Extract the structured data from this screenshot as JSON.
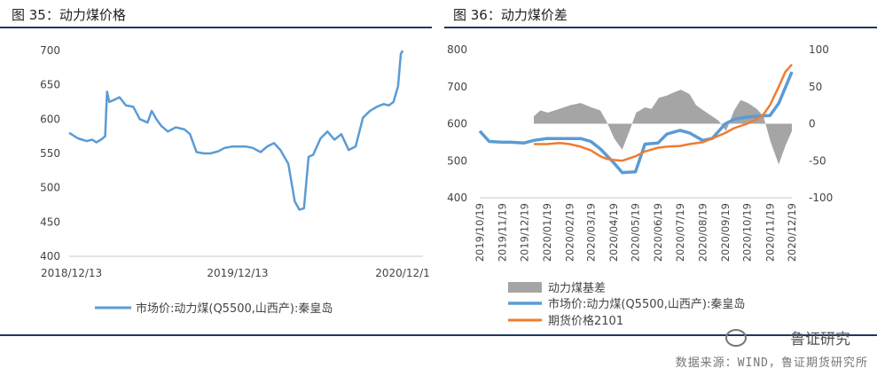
{
  "chart_data": [
    {
      "type": "line",
      "title": "图 35：动力煤价格",
      "x_ticks": [
        "2018/12/13",
        "2019/12/13",
        "2020/12/1"
      ],
      "ylim": [
        400,
        700
      ],
      "y_ticks": [
        400,
        450,
        500,
        550,
        600,
        650,
        700
      ],
      "legend": "bottom",
      "series": [
        {
          "name": "市场价:动力煤(Q5500,山西产):秦皇岛",
          "color": "#5b9bd5",
          "x": [
            "2018/12/13",
            "2019/01/01",
            "2019/01/10",
            "2019/01/20",
            "2019/02/01",
            "2019/02/10",
            "2019/02/20",
            "2019/03/01",
            "2019/03/05",
            "2019/03/10",
            "2019/03/20",
            "2019/04/01",
            "2019/04/15",
            "2019/05/01",
            "2019/05/15",
            "2019/06/01",
            "2019/06/10",
            "2019/06/20",
            "2019/07/01",
            "2019/07/15",
            "2019/08/01",
            "2019/08/20",
            "2019/09/01",
            "2019/09/15",
            "2019/10/01",
            "2019/10/15",
            "2019/11/01",
            "2019/11/15",
            "2019/12/01",
            "2019/12/15",
            "2020/01/01",
            "2020/01/15",
            "2020/02/01",
            "2020/02/15",
            "2020/03/01",
            "2020/03/15",
            "2020/04/01",
            "2020/04/15",
            "2020/04/25",
            "2020/05/05",
            "2020/05/15",
            "2020/05/25",
            "2020/06/10",
            "2020/06/25",
            "2020/07/10",
            "2020/07/25",
            "2020/08/10",
            "2020/08/25",
            "2020/09/10",
            "2020/09/25",
            "2020/10/10",
            "2020/10/25",
            "2020/11/05",
            "2020/11/15",
            "2020/11/25",
            "2020/12/01",
            "2020/12/05"
          ],
          "values": [
            580,
            572,
            570,
            568,
            570,
            566,
            570,
            575,
            640,
            625,
            628,
            632,
            620,
            618,
            600,
            595,
            612,
            600,
            590,
            582,
            588,
            585,
            578,
            552,
            550,
            550,
            553,
            558,
            560,
            560,
            560,
            558,
            552,
            560,
            565,
            555,
            535,
            480,
            468,
            470,
            545,
            548,
            572,
            582,
            570,
            578,
            555,
            560,
            602,
            612,
            618,
            622,
            620,
            625,
            648,
            695,
            700
          ]
        }
      ]
    },
    {
      "type": "line",
      "title": "图 36：动力煤价差",
      "x_ticks": [
        "2019/10/19",
        "2019/11/19",
        "2019/12/19",
        "2020/01/19",
        "2020/02/19",
        "2020/03/19",
        "2020/04/19",
        "2020/05/19",
        "2020/06/19",
        "2020/07/19",
        "2020/08/19",
        "2020/09/19",
        "2020/10/19",
        "2020/11/19",
        "2020/12/19"
      ],
      "ylim": [
        400,
        800
      ],
      "y_ticks": [
        400,
        500,
        600,
        700,
        800
      ],
      "y2lim": [
        -100,
        100
      ],
      "y2_ticks": [
        -100,
        -50,
        0,
        50,
        100
      ],
      "legend": "bottom",
      "series": [
        {
          "name": "动力煤基差",
          "type": "area",
          "axis": "right",
          "color": "#a5a5a5",
          "x": [
            "2020/01/01",
            "2020/01/10",
            "2020/01/20",
            "2020/02/05",
            "2020/02/20",
            "2020/03/05",
            "2020/03/20",
            "2020/04/01",
            "2020/04/10",
            "2020/04/20",
            "2020/05/01",
            "2020/05/10",
            "2020/05/20",
            "2020/06/01",
            "2020/06/10",
            "2020/06/20",
            "2020/07/01",
            "2020/07/10",
            "2020/07/20",
            "2020/08/01",
            "2020/08/10",
            "2020/08/20",
            "2020/09/01",
            "2020/09/10",
            "2020/09/20",
            "2020/10/01",
            "2020/10/10",
            "2020/10/20",
            "2020/11/01",
            "2020/11/10",
            "2020/11/20",
            "2020/12/01",
            "2020/12/10",
            "2020/12/19"
          ],
          "values": [
            10,
            18,
            15,
            20,
            25,
            28,
            22,
            18,
            2,
            -20,
            -35,
            -12,
            15,
            22,
            20,
            35,
            38,
            42,
            46,
            40,
            25,
            18,
            10,
            4,
            -10,
            18,
            32,
            28,
            20,
            10,
            -25,
            -55,
            -30,
            -10
          ]
        },
        {
          "name": "市场价:动力煤(Q5500,山西产):秦皇岛",
          "axis": "left",
          "color": "#5b9bd5",
          "x": [
            "2019/10/19",
            "2019/11/01",
            "2019/11/19",
            "2019/12/01",
            "2019/12/19",
            "2020/01/01",
            "2020/01/19",
            "2020/02/19",
            "2020/03/05",
            "2020/03/19",
            "2020/04/01",
            "2020/04/19",
            "2020/05/01",
            "2020/05/19",
            "2020/06/01",
            "2020/06/19",
            "2020/07/01",
            "2020/07/19",
            "2020/08/01",
            "2020/08/19",
            "2020/09/01",
            "2020/09/19",
            "2020/10/01",
            "2020/10/19",
            "2020/11/01",
            "2020/11/19",
            "2020/12/01",
            "2020/12/19"
          ],
          "values": [
            580,
            552,
            550,
            550,
            548,
            555,
            560,
            560,
            560,
            552,
            532,
            495,
            468,
            470,
            545,
            548,
            572,
            582,
            575,
            555,
            560,
            600,
            612,
            618,
            620,
            622,
            655,
            740
          ]
        },
        {
          "name": "期货价格2101",
          "axis": "left",
          "color": "#ed7d31",
          "x": [
            "2020/01/01",
            "2020/01/19",
            "2020/02/05",
            "2020/02/19",
            "2020/03/05",
            "2020/03/19",
            "2020/04/01",
            "2020/04/10",
            "2020/04/19",
            "2020/05/01",
            "2020/05/19",
            "2020/06/01",
            "2020/06/19",
            "2020/07/01",
            "2020/07/19",
            "2020/08/01",
            "2020/08/19",
            "2020/09/01",
            "2020/09/19",
            "2020/10/01",
            "2020/10/19",
            "2020/11/01",
            "2020/11/10",
            "2020/11/19",
            "2020/12/01",
            "2020/12/10",
            "2020/12/19"
          ],
          "values": [
            545,
            545,
            548,
            545,
            538,
            528,
            512,
            505,
            502,
            500,
            512,
            525,
            535,
            538,
            540,
            545,
            550,
            560,
            575,
            588,
            600,
            612,
            625,
            650,
            700,
            740,
            760
          ]
        }
      ]
    }
  ],
  "footer": {
    "source": "数据来源：WIND，鲁证期货研究所",
    "watermark": "鲁证研究"
  }
}
